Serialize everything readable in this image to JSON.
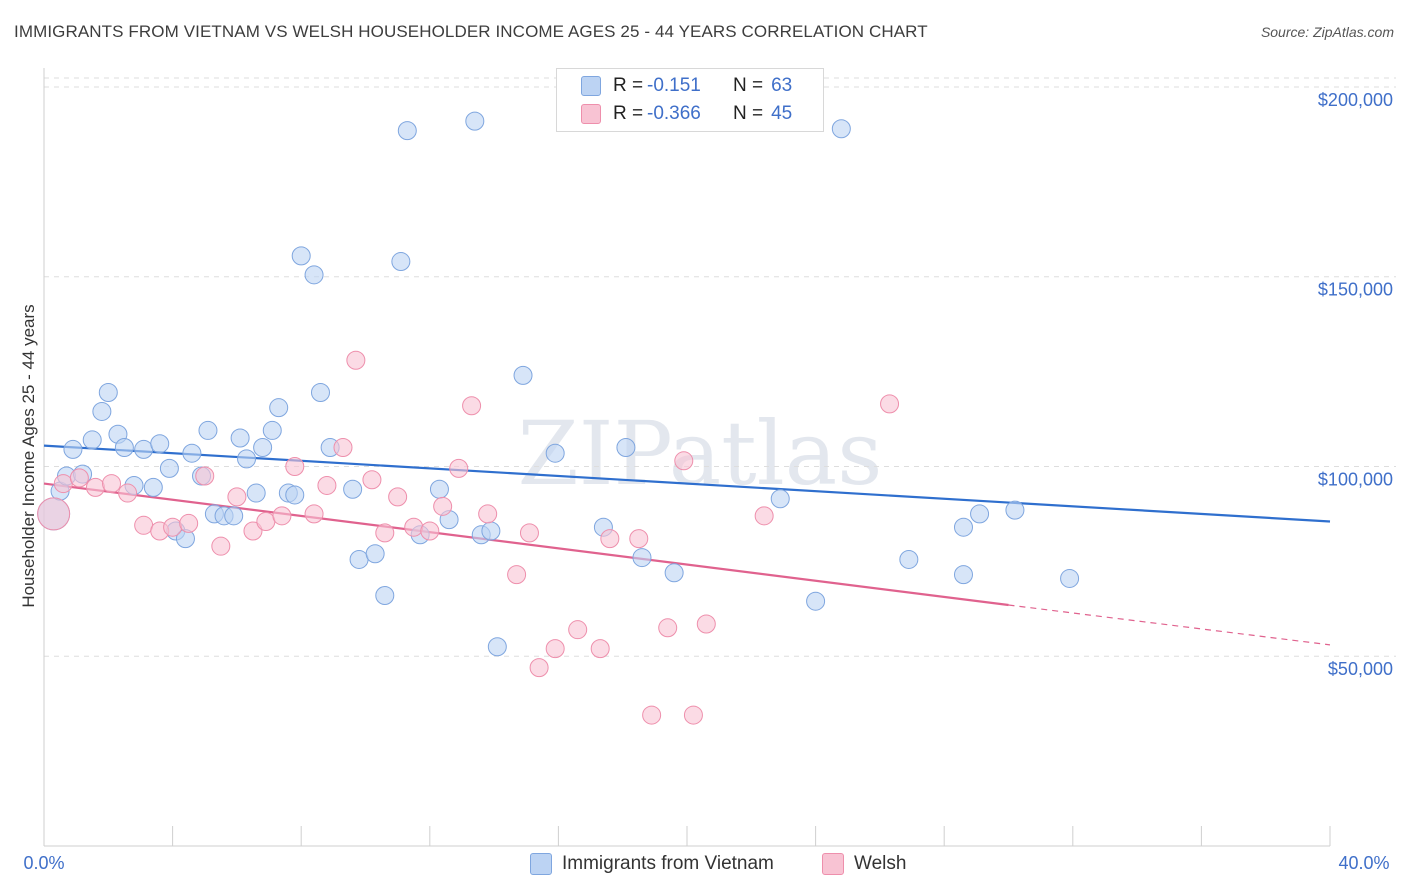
{
  "header": {
    "title": "IMMIGRANTS FROM VIETNAM VS WELSH HOUSEHOLDER INCOME AGES 25 - 44 YEARS CORRELATION CHART",
    "source": "Source: ZipAtlas.com"
  },
  "watermark": "ZIPatlas",
  "legend": {
    "rows": [
      {
        "r_label": "R =",
        "r_value": "-0.151",
        "n_label": "N =",
        "n_value": "63"
      },
      {
        "r_label": "R =",
        "r_value": "-0.366",
        "n_label": "N =",
        "n_value": "45"
      }
    ],
    "bottom": [
      "Immigrants from Vietnam",
      "Welsh"
    ]
  },
  "colors": {
    "blue_fill": "#bcd3f3",
    "blue_stroke": "#7fa6df",
    "blue_line": "#2f6fce",
    "pink_fill": "#f8c3d3",
    "pink_stroke": "#ee8fac",
    "pink_line": "#e0628e",
    "grid": "#dddddd",
    "tick_text": "#3f6fc9"
  },
  "chart_data": {
    "type": "scatter",
    "title": "IMMIGRANTS FROM VIETNAM VS WELSH HOUSEHOLDER INCOME AGES 25 - 44 YEARS CORRELATION CHART",
    "xlabel": "",
    "ylabel": "Householder Income Ages 25 - 44 years",
    "xlim": [
      0,
      40
    ],
    "ylim": [
      0,
      205000
    ],
    "x_tick_labels": [
      "0.0%",
      "40.0%"
    ],
    "y_ticks": [
      50000,
      100000,
      150000,
      200000
    ],
    "y_tick_labels": [
      "$50,000",
      "$100,000",
      "$150,000",
      "$200,000"
    ],
    "grid": true,
    "legend_position": "top-center",
    "series": [
      {
        "name": "Immigrants from Vietnam",
        "r": -0.151,
        "n": 63,
        "trend": {
          "x0": 0,
          "y0": 105500,
          "x1": 40,
          "y1": 85500
        },
        "points": [
          [
            0.3,
            87500
          ],
          [
            0.5,
            93500
          ],
          [
            0.7,
            97500
          ],
          [
            0.9,
            104500
          ],
          [
            1.2,
            98000
          ],
          [
            1.5,
            107000
          ],
          [
            1.8,
            114500
          ],
          [
            2.0,
            119500
          ],
          [
            2.3,
            108500
          ],
          [
            2.5,
            105000
          ],
          [
            2.8,
            95000
          ],
          [
            3.1,
            104500
          ],
          [
            3.4,
            94500
          ],
          [
            3.6,
            106000
          ],
          [
            3.9,
            99500
          ],
          [
            4.1,
            83000
          ],
          [
            4.4,
            81000
          ],
          [
            4.6,
            103500
          ],
          [
            4.9,
            97500
          ],
          [
            5.1,
            109500
          ],
          [
            5.3,
            87500
          ],
          [
            5.6,
            87000
          ],
          [
            5.9,
            87000
          ],
          [
            6.1,
            107500
          ],
          [
            6.3,
            102000
          ],
          [
            6.6,
            93000
          ],
          [
            6.8,
            105000
          ],
          [
            7.1,
            109500
          ],
          [
            7.3,
            115500
          ],
          [
            7.6,
            93000
          ],
          [
            7.8,
            92500
          ],
          [
            8.0,
            155500
          ],
          [
            8.4,
            150500
          ],
          [
            8.6,
            119500
          ],
          [
            8.9,
            105000
          ],
          [
            9.6,
            94000
          ],
          [
            9.8,
            75500
          ],
          [
            10.3,
            77000
          ],
          [
            10.6,
            66000
          ],
          [
            11.1,
            154000
          ],
          [
            11.3,
            188500
          ],
          [
            11.7,
            82000
          ],
          [
            12.3,
            94000
          ],
          [
            12.6,
            86000
          ],
          [
            13.4,
            191000
          ],
          [
            13.6,
            82000
          ],
          [
            13.9,
            83000
          ],
          [
            14.1,
            52500
          ],
          [
            14.9,
            124000
          ],
          [
            15.9,
            103500
          ],
          [
            17.4,
            84000
          ],
          [
            18.1,
            105000
          ],
          [
            18.6,
            76000
          ],
          [
            19.6,
            72000
          ],
          [
            22.9,
            91500
          ],
          [
            24.0,
            64500
          ],
          [
            24.8,
            189000
          ],
          [
            26.9,
            75500
          ],
          [
            28.6,
            84000
          ],
          [
            28.6,
            71500
          ],
          [
            29.1,
            87500
          ],
          [
            30.2,
            88500
          ],
          [
            31.9,
            70500
          ]
        ]
      },
      {
        "name": "Welsh",
        "r": -0.366,
        "n": 45,
        "trend": {
          "x0": 0,
          "y0": 95500,
          "x1": 30,
          "y1": 63500,
          "dashed_to_x": 40,
          "dashed_to_y": 53000
        },
        "points": [
          [
            0.3,
            87500
          ],
          [
            0.6,
            95500
          ],
          [
            1.1,
            97000
          ],
          [
            1.6,
            94500
          ],
          [
            2.1,
            95500
          ],
          [
            2.6,
            93000
          ],
          [
            3.1,
            84500
          ],
          [
            3.6,
            83000
          ],
          [
            4.0,
            84000
          ],
          [
            4.5,
            85000
          ],
          [
            5.0,
            97500
          ],
          [
            5.5,
            79000
          ],
          [
            6.0,
            92000
          ],
          [
            6.5,
            83000
          ],
          [
            6.9,
            85500
          ],
          [
            7.4,
            87000
          ],
          [
            7.8,
            100000
          ],
          [
            8.4,
            87500
          ],
          [
            8.8,
            95000
          ],
          [
            9.3,
            105000
          ],
          [
            9.7,
            128000
          ],
          [
            10.2,
            96500
          ],
          [
            10.6,
            82500
          ],
          [
            11.0,
            92000
          ],
          [
            11.5,
            84000
          ],
          [
            12.0,
            83000
          ],
          [
            12.4,
            89500
          ],
          [
            12.9,
            99500
          ],
          [
            13.3,
            116000
          ],
          [
            13.8,
            87500
          ],
          [
            14.7,
            71500
          ],
          [
            15.1,
            82500
          ],
          [
            15.4,
            47000
          ],
          [
            15.9,
            52000
          ],
          [
            16.6,
            57000
          ],
          [
            17.3,
            52000
          ],
          [
            17.6,
            81000
          ],
          [
            18.5,
            81000
          ],
          [
            18.9,
            34500
          ],
          [
            19.4,
            57500
          ],
          [
            19.9,
            101500
          ],
          [
            20.2,
            34500
          ],
          [
            20.6,
            58500
          ],
          [
            22.4,
            87000
          ],
          [
            26.3,
            116500
          ]
        ]
      }
    ]
  }
}
